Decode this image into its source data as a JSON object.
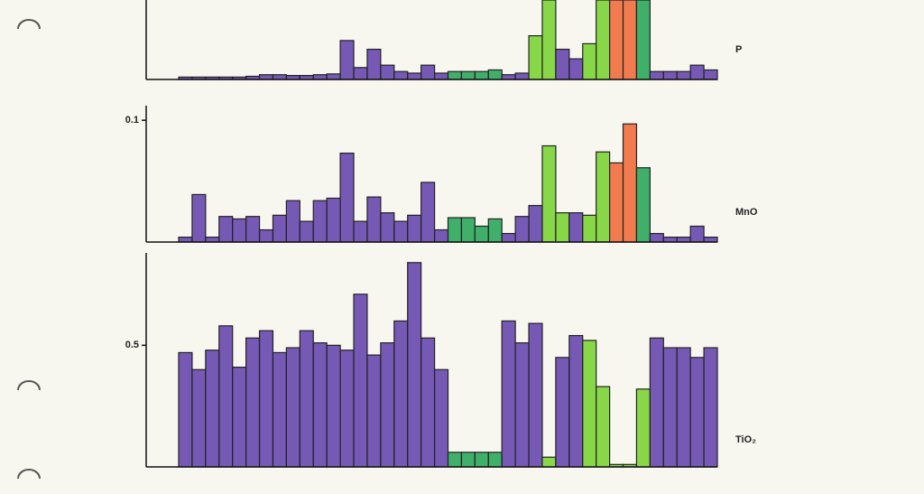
{
  "chart_data": [
    {
      "type": "bar",
      "label": "P",
      "ylim": [
        0,
        1
      ],
      "yticks": [],
      "values": [
        0.03,
        0.03,
        0.03,
        0.03,
        0.03,
        0.04,
        0.06,
        0.06,
        0.05,
        0.05,
        0.06,
        0.07,
        0.49,
        0.15,
        0.38,
        0.18,
        0.1,
        0.08,
        0.18,
        0.08,
        0.1,
        0.1,
        0.1,
        0.12,
        0.06,
        0.08,
        0.55,
        1.0,
        0.38,
        0.26,
        0.45,
        1.0,
        1.0,
        1.0,
        1.0,
        0.1,
        0.1,
        0.1,
        0.18,
        0.12
      ],
      "colors": [
        "#6a4bb0",
        "#6a4bb0",
        "#6a4bb0",
        "#6a4bb0",
        "#6a4bb0",
        "#6a4bb0",
        "#6a4bb0",
        "#6a4bb0",
        "#6a4bb0",
        "#6a4bb0",
        "#6a4bb0",
        "#6a4bb0",
        "#6a4bb0",
        "#6a4bb0",
        "#6a4bb0",
        "#6a4bb0",
        "#6a4bb0",
        "#6a4bb0",
        "#6a4bb0",
        "#6a4bb0",
        "#2fa85e",
        "#2fa85e",
        "#2fa85e",
        "#2fa85e",
        "#6a4bb0",
        "#6a4bb0",
        "#7ed43a",
        "#7ed43a",
        "#6a4bb0",
        "#6a4bb0",
        "#7ed43a",
        "#7ed43a",
        "#f07040",
        "#f07040",
        "#2fa85e",
        "#6a4bb0",
        "#6a4bb0",
        "#6a4bb0",
        "#6a4bb0",
        "#6a4bb0"
      ]
    },
    {
      "type": "bar",
      "label": "MnO",
      "ylim": [
        0,
        0.112
      ],
      "yticks": [
        0.1
      ],
      "values": [
        0.004,
        0.039,
        0.004,
        0.021,
        0.019,
        0.021,
        0.01,
        0.022,
        0.034,
        0.017,
        0.034,
        0.036,
        0.073,
        0.017,
        0.037,
        0.024,
        0.017,
        0.022,
        0.049,
        0.01,
        0.02,
        0.02,
        0.013,
        0.019,
        0.007,
        0.021,
        0.03,
        0.079,
        0.024,
        0.024,
        0.022,
        0.074,
        0.065,
        0.097,
        0.061,
        0.007,
        0.004,
        0.004,
        0.013,
        0.004
      ],
      "colors": [
        "#6a4bb0",
        "#6a4bb0",
        "#6a4bb0",
        "#6a4bb0",
        "#6a4bb0",
        "#6a4bb0",
        "#6a4bb0",
        "#6a4bb0",
        "#6a4bb0",
        "#6a4bb0",
        "#6a4bb0",
        "#6a4bb0",
        "#6a4bb0",
        "#6a4bb0",
        "#6a4bb0",
        "#6a4bb0",
        "#6a4bb0",
        "#6a4bb0",
        "#6a4bb0",
        "#6a4bb0",
        "#2fa85e",
        "#2fa85e",
        "#2fa85e",
        "#2fa85e",
        "#6a4bb0",
        "#6a4bb0",
        "#6a4bb0",
        "#7ed43a",
        "#7ed43a",
        "#6a4bb0",
        "#7ed43a",
        "#7ed43a",
        "#f07040",
        "#f07040",
        "#2fa85e",
        "#6a4bb0",
        "#6a4bb0",
        "#6a4bb0",
        "#6a4bb0",
        "#6a4bb0"
      ]
    },
    {
      "type": "bar",
      "label": "TiO₂",
      "ylim": [
        0,
        0.88
      ],
      "yticks": [
        0.5
      ],
      "values": [
        0.47,
        0.4,
        0.48,
        0.58,
        0.41,
        0.53,
        0.56,
        0.47,
        0.49,
        0.56,
        0.51,
        0.5,
        0.48,
        0.71,
        0.46,
        0.51,
        0.6,
        0.84,
        0.53,
        0.4,
        0.06,
        0.06,
        0.06,
        0.06,
        0.6,
        0.51,
        0.59,
        0.04,
        0.45,
        0.54,
        0.52,
        0.33,
        0.01,
        0.01,
        0.32,
        0.53,
        0.49,
        0.49,
        0.45,
        0.49
      ],
      "colors": [
        "#6a4bb0",
        "#6a4bb0",
        "#6a4bb0",
        "#6a4bb0",
        "#6a4bb0",
        "#6a4bb0",
        "#6a4bb0",
        "#6a4bb0",
        "#6a4bb0",
        "#6a4bb0",
        "#6a4bb0",
        "#6a4bb0",
        "#6a4bb0",
        "#6a4bb0",
        "#6a4bb0",
        "#6a4bb0",
        "#6a4bb0",
        "#6a4bb0",
        "#6a4bb0",
        "#6a4bb0",
        "#2fa85e",
        "#2fa85e",
        "#2fa85e",
        "#2fa85e",
        "#6a4bb0",
        "#6a4bb0",
        "#6a4bb0",
        "#7ed43a",
        "#6a4bb0",
        "#6a4bb0",
        "#7ed43a",
        "#7ed43a",
        "#7ed43a",
        "#7ed43a",
        "#7ed43a",
        "#6a4bb0",
        "#6a4bb0",
        "#6a4bb0",
        "#6a4bb0",
        "#6a4bb0"
      ]
    }
  ]
}
